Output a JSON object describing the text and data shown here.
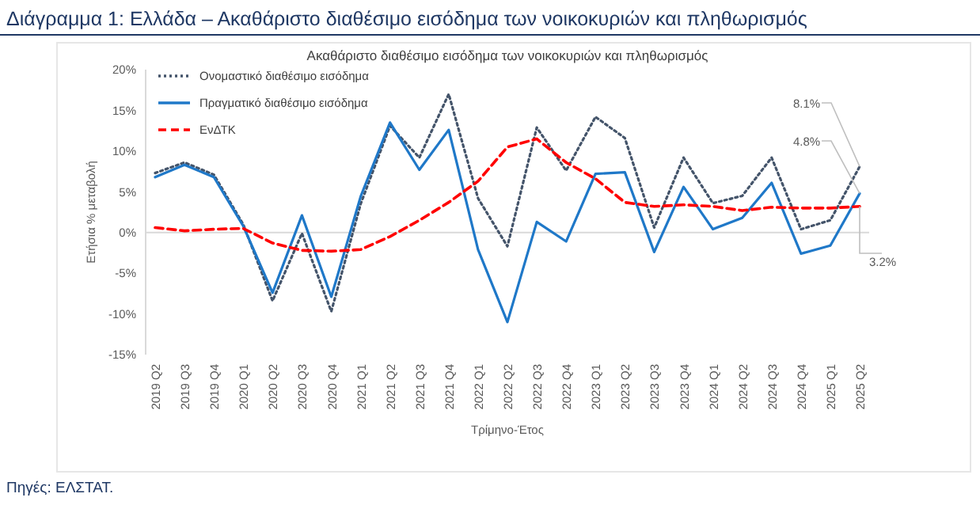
{
  "chart_data": {
    "type": "line",
    "title": "Διάγραμμα 1: Ελλάδα – Ακαθάριστο διαθέσιμο εισόδημα των νοικοκυριών και πληθωρισμός",
    "subtitle": "Ακαθάριστο διαθέσιμο εισόδημα των νοικοκυριών και πληθωρισμός",
    "xlabel": "Τρίμηνο-Έτος",
    "ylabel": "Ετήσια % μεταβολή",
    "categories": [
      "2019 Q2",
      "2019 Q3",
      "2019 Q4",
      "2020 Q1",
      "2020 Q2",
      "2020 Q3",
      "2020 Q4",
      "2021 Q1",
      "2021 Q2",
      "2021 Q3",
      "2021 Q4",
      "2022 Q1",
      "2022 Q2",
      "2022 Q3",
      "2022 Q4",
      "2023 Q1",
      "2023 Q2",
      "2023 Q3",
      "2023 Q4",
      "2024 Q1",
      "2024 Q2",
      "2024 Q3",
      "2024 Q4",
      "2025 Q1",
      "2025 Q2"
    ],
    "series": [
      {
        "name": "Ονομαστικό διαθέσιμο εισόδημα",
        "color": "#44546a",
        "line_style": "dotted",
        "values": [
          7.3,
          8.6,
          7.1,
          1.0,
          -8.4,
          -0.1,
          -9.7,
          3.5,
          13.1,
          9.2,
          17.0,
          4.2,
          -1.7,
          12.9,
          7.6,
          14.2,
          11.6,
          0.6,
          9.2,
          3.6,
          4.5,
          9.2,
          0.4,
          1.5,
          8.1
        ]
      },
      {
        "name": "Πραγματικό διαθέσιμο εισόδημα",
        "color": "#1f78c8",
        "line_style": "solid",
        "values": [
          6.8,
          8.3,
          6.8,
          0.8,
          -7.4,
          2.1,
          -7.9,
          4.4,
          13.5,
          7.7,
          12.6,
          -2.1,
          -11.0,
          1.3,
          -1.1,
          7.2,
          7.4,
          -2.4,
          5.6,
          0.4,
          1.8,
          6.1,
          -2.6,
          -1.6,
          4.8
        ]
      },
      {
        "name": "ΕνΔΤΚ",
        "color": "#ff0000",
        "line_style": "dashed",
        "values": [
          0.6,
          0.2,
          0.4,
          0.5,
          -1.3,
          -2.2,
          -2.3,
          -2.1,
          -0.5,
          1.5,
          3.7,
          6.3,
          10.5,
          11.5,
          8.6,
          6.6,
          3.7,
          3.2,
          3.4,
          3.2,
          2.7,
          3.1,
          3.0,
          3.0,
          3.2
        ]
      }
    ],
    "ylim": [
      -15,
      20
    ],
    "yticks": [
      {
        "value": -15,
        "label": "-15%"
      },
      {
        "value": -10,
        "label": "-10%"
      },
      {
        "value": -5,
        "label": "-5%"
      },
      {
        "value": 0,
        "label": "0%"
      },
      {
        "value": 5,
        "label": "5%"
      },
      {
        "value": 10,
        "label": "10%"
      },
      {
        "value": 15,
        "label": "15%"
      },
      {
        "value": 20,
        "label": "20%"
      }
    ],
    "grid": false,
    "legend": "top left",
    "marker": "none",
    "ref_lines": [
      {
        "axis": "y",
        "value": 0,
        "color": "#d9d9d9"
      }
    ],
    "annotations": [
      {
        "text": "8.1%",
        "x": "2025 Q2",
        "y": 8.1
      },
      {
        "text": "4.8%",
        "x": "2025 Q2",
        "y": 4.8
      },
      {
        "text": "3.2%",
        "x": "2025 Q2",
        "y": 3.2
      },
      "Πηγές: ΕΛΣΤΑΤ."
    ]
  }
}
